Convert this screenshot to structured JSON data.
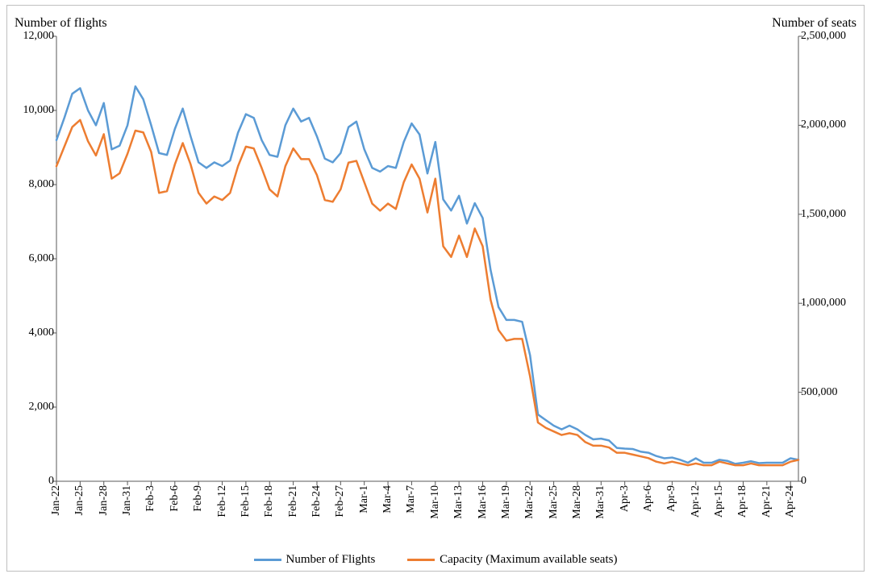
{
  "chart": {
    "type": "line-dual-axis",
    "background_color": "#ffffff",
    "border_color": "#bfbfbf",
    "font_family": "Times New Roman",
    "axis_label_fontsize": 14,
    "axis_title_fontsize": 16,
    "legend_fontsize": 15,
    "grid": false,
    "line_width": 2.5,
    "left_axis": {
      "title": "Number of flights",
      "min": 0,
      "max": 12000,
      "tick_step": 2000,
      "tick_labels": [
        "0",
        "2,000",
        "4,000",
        "6,000",
        "8,000",
        "10,000",
        "12,000"
      ],
      "tick_color": "#595959",
      "axis_line": true
    },
    "right_axis": {
      "title": "Number of seats",
      "min": 0,
      "max": 2500000,
      "tick_step": 500000,
      "tick_labels": [
        "0",
        "500,000",
        "1,000,000",
        "1,500,000",
        "2,000,000",
        "2,500,000"
      ],
      "tick_color": "#595959",
      "axis_line": true
    },
    "x_axis": {
      "categories": [
        "Jan-22",
        "Jan-23",
        "Jan-24",
        "Jan-25",
        "Jan-26",
        "Jan-27",
        "Jan-28",
        "Jan-29",
        "Jan-30",
        "Jan-31",
        "Feb-1",
        "Feb-2",
        "Feb-3",
        "Feb-4",
        "Feb-5",
        "Feb-6",
        "Feb-7",
        "Feb-8",
        "Feb-9",
        "Feb-10",
        "Feb-11",
        "Feb-12",
        "Feb-13",
        "Feb-14",
        "Feb-15",
        "Feb-16",
        "Feb-17",
        "Feb-18",
        "Feb-19",
        "Feb-20",
        "Feb-21",
        "Feb-22",
        "Feb-23",
        "Feb-24",
        "Feb-25",
        "Feb-26",
        "Feb-27",
        "Feb-28",
        "Feb-29",
        "Mar-1",
        "Mar-2",
        "Mar-3",
        "Mar-4",
        "Mar-5",
        "Mar-6",
        "Mar-7",
        "Mar-8",
        "Mar-9",
        "Mar-10",
        "Mar-11",
        "Mar-12",
        "Mar-13",
        "Mar-14",
        "Mar-15",
        "Mar-16",
        "Mar-17",
        "Mar-18",
        "Mar-19",
        "Mar-20",
        "Mar-21",
        "Mar-22",
        "Mar-23",
        "Mar-24",
        "Mar-25",
        "Mar-26",
        "Mar-27",
        "Mar-28",
        "Mar-29",
        "Mar-30",
        "Mar-31",
        "Apr-1",
        "Apr-2",
        "Apr-3",
        "Apr-4",
        "Apr-5",
        "Apr-6",
        "Apr-7",
        "Apr-8",
        "Apr-9",
        "Apr-10",
        "Apr-11",
        "Apr-12",
        "Apr-13",
        "Apr-14",
        "Apr-15",
        "Apr-16",
        "Apr-17",
        "Apr-18",
        "Apr-19",
        "Apr-20",
        "Apr-21",
        "Apr-22",
        "Apr-23",
        "Apr-24",
        "Apr-25"
      ],
      "tick_labels_shown": [
        "Jan-22",
        "Jan-25",
        "Jan-28",
        "Jan-31",
        "Feb-3",
        "Feb-6",
        "Feb-9",
        "Feb-12",
        "Feb-15",
        "Feb-18",
        "Feb-21",
        "Feb-24",
        "Feb-27",
        "Mar-1",
        "Mar-4",
        "Mar-7",
        "Mar-10",
        "Mar-13",
        "Mar-16",
        "Mar-19",
        "Mar-22",
        "Mar-25",
        "Mar-28",
        "Mar-31",
        "Apr-3",
        "Apr-6",
        "Apr-9",
        "Apr-12",
        "Apr-15",
        "Apr-18",
        "Apr-21",
        "Apr-24"
      ],
      "tick_rotation_deg": -90,
      "axis_line": true
    },
    "series": [
      {
        "name": "Number of Flights",
        "color": "#5b9bd5",
        "axis": "left",
        "values": [
          9200,
          9800,
          10450,
          10600,
          10000,
          9600,
          10200,
          8950,
          9050,
          9600,
          10650,
          10300,
          9600,
          8850,
          8800,
          9500,
          10050,
          9300,
          8600,
          8450,
          8600,
          8500,
          8650,
          9400,
          9900,
          9800,
          9200,
          8800,
          8750,
          9600,
          10050,
          9700,
          9800,
          9300,
          8700,
          8600,
          8850,
          9550,
          9700,
          8950,
          8450,
          8350,
          8500,
          8450,
          9150,
          9650,
          9350,
          8300,
          9150,
          7600,
          7300,
          7700,
          6950,
          7500,
          7100,
          5700,
          4700,
          4350,
          4350,
          4300,
          3400,
          1800,
          1650,
          1500,
          1400,
          1500,
          1400,
          1250,
          1130,
          1150,
          1100,
          900,
          880,
          870,
          800,
          770,
          680,
          620,
          640,
          580,
          500,
          620,
          500,
          500,
          580,
          550,
          470,
          500,
          540,
          490,
          500,
          500,
          500,
          620,
          580
        ]
      },
      {
        "name": "Capacity (Maximum available seats)",
        "color": "#ed7d31",
        "axis": "right",
        "values": [
          1770000,
          1880000,
          1990000,
          2030000,
          1910000,
          1830000,
          1950000,
          1700000,
          1730000,
          1840000,
          1970000,
          1960000,
          1850000,
          1620000,
          1630000,
          1780000,
          1900000,
          1780000,
          1620000,
          1560000,
          1600000,
          1580000,
          1620000,
          1770000,
          1880000,
          1870000,
          1760000,
          1640000,
          1600000,
          1770000,
          1870000,
          1810000,
          1810000,
          1720000,
          1580000,
          1570000,
          1640000,
          1790000,
          1800000,
          1680000,
          1560000,
          1520000,
          1560000,
          1530000,
          1680000,
          1780000,
          1700000,
          1510000,
          1700000,
          1320000,
          1260000,
          1380000,
          1260000,
          1420000,
          1320000,
          1020000,
          850000,
          790000,
          800000,
          800000,
          590000,
          330000,
          300000,
          280000,
          260000,
          270000,
          260000,
          220000,
          200000,
          200000,
          190000,
          160000,
          160000,
          150000,
          140000,
          130000,
          110000,
          100000,
          110000,
          100000,
          90000,
          100000,
          90000,
          90000,
          110000,
          100000,
          90000,
          90000,
          100000,
          90000,
          90000,
          90000,
          90000,
          110000,
          120000
        ]
      }
    ],
    "legend": {
      "position": "bottom-center",
      "items": [
        {
          "label": "Number of Flights",
          "color": "#5b9bd5"
        },
        {
          "label": "Capacity (Maximum available seats)",
          "color": "#ed7d31"
        }
      ]
    }
  }
}
